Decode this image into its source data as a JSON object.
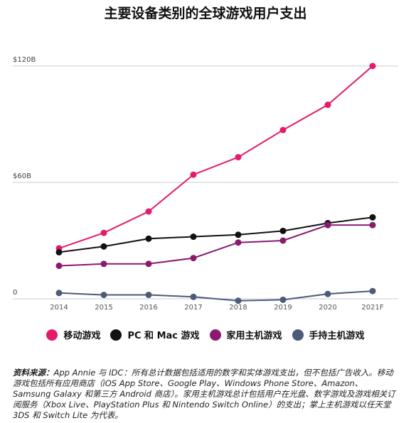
{
  "title": "主要设备类别的全球游戏用户支出",
  "chart_data": {
    "type": "line",
    "categories": [
      "2014",
      "2015",
      "2016",
      "2017",
      "2018",
      "2019",
      "2020",
      "2021F"
    ],
    "y_tick_labels": [
      "0",
      "$60B",
      "$120B"
    ],
    "y_tick_values": [
      0,
      60,
      120
    ],
    "ylim": [
      0,
      120
    ],
    "grid": true,
    "legend_position": "bottom",
    "series": [
      {
        "name": "移动游戏",
        "color": "#e31b6d",
        "values": [
          26,
          34,
          45,
          64,
          73,
          87,
          100,
          120
        ]
      },
      {
        "name": "PC 和 Mac 游戏",
        "color": "#111111",
        "values": [
          24,
          27,
          31,
          32,
          33,
          35,
          39,
          42
        ]
      },
      {
        "name": "家用主机游戏",
        "color": "#8b1a6e",
        "values": [
          17,
          18,
          18,
          21,
          29,
          30,
          38,
          38
        ]
      },
      {
        "name": "手持主机游戏",
        "color": "#4b5b78",
        "values": [
          3,
          2,
          2,
          1,
          -1,
          -0.5,
          2.5,
          4
        ]
      }
    ]
  },
  "source": {
    "label": "资料来源：",
    "text": "App Annie 与 IDC：所有总计数据包括适用的数字和实体游戏支出，但不包括广告收入。移动游戏包括所有应用商店（iOS App Store、Google Play、Windows Phone Store、Amazon、Samsung Galaxy 和第三方 Android 商店）。家用主机游戏总计包括用户在光盘、数字游戏及游戏相关订阅服务（Xbox Live、PlayStation Plus 和 Nintendo Switch Online）的支出；掌上主机游戏以任天堂 3DS 和 Switch Lite 为代表。"
  }
}
